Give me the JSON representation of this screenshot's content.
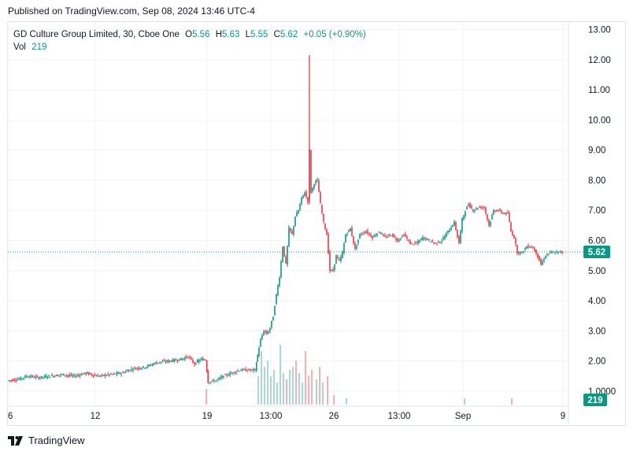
{
  "published": "Published on TradingView.com, Sep 08, 2024 13:46 UTC-4",
  "branding": {
    "logo_icon": "tradingview-logo-icon",
    "name": "TradingView"
  },
  "legend": {
    "symbol": "GD Culture Group Limited, 30, Cboe One",
    "open_label": "O",
    "open": "5.56",
    "high_label": "H",
    "high": "5.63",
    "low_label": "L",
    "low": "5.55",
    "close_label": "C",
    "close": "5.62",
    "change": "+0.05 (+0.90%)",
    "vol_label": "Vol",
    "vol": "219"
  },
  "colors": {
    "up": "#089981",
    "down": "#f23645",
    "up_volume": "#a8dad1",
    "down_volume": "#f7b1b5",
    "last_price_line": "#089981",
    "grid": "#f0f3fa"
  },
  "chart_data": {
    "type": "candlestick",
    "title": "GD Culture Group Limited, 30, Cboe One",
    "interval": "30",
    "y_axis": {
      "position": "right",
      "range": [
        0.5,
        13.25
      ],
      "ticks": [
        "1.0000",
        "2.00",
        "3.00",
        "4.00",
        "5.00",
        "6.00",
        "7.00",
        "8.00",
        "9.00",
        "10.00",
        "11.00",
        "12.00",
        "13.00"
      ]
    },
    "x_axis": {
      "range": [
        0,
        705
      ],
      "ticks": [
        {
          "label": "6",
          "x": 0
        },
        {
          "label": "12",
          "x": 111
        },
        {
          "label": "19",
          "x": 253
        },
        {
          "label": "13:00",
          "x": 334
        },
        {
          "label": "26",
          "x": 414
        },
        {
          "label": "13:00",
          "x": 497
        },
        {
          "label": "Sep",
          "x": 578
        },
        {
          "label": "9",
          "x": 705
        }
      ]
    },
    "last_price": "5.62",
    "last_volume": "219",
    "grid": true,
    "price_path": [
      [
        0,
        1.35
      ],
      [
        15,
        1.4
      ],
      [
        25,
        1.5
      ],
      [
        40,
        1.45
      ],
      [
        55,
        1.5
      ],
      [
        70,
        1.55
      ],
      [
        85,
        1.5
      ],
      [
        100,
        1.6
      ],
      [
        115,
        1.5
      ],
      [
        130,
        1.55
      ],
      [
        145,
        1.6
      ],
      [
        160,
        1.75
      ],
      [
        175,
        1.8
      ],
      [
        190,
        1.95
      ],
      [
        205,
        2.0
      ],
      [
        220,
        2.05
      ],
      [
        230,
        2.15
      ],
      [
        238,
        1.9
      ],
      [
        245,
        2.05
      ],
      [
        252,
        2.05
      ],
      [
        255,
        1.3
      ],
      [
        265,
        1.35
      ],
      [
        275,
        1.5
      ],
      [
        285,
        1.6
      ],
      [
        295,
        1.7
      ],
      [
        305,
        1.7
      ],
      [
        315,
        1.7
      ],
      [
        318,
        2.2
      ],
      [
        322,
        2.7
      ],
      [
        326,
        3.0
      ],
      [
        330,
        2.9
      ],
      [
        334,
        3.1
      ],
      [
        338,
        3.5
      ],
      [
        342,
        4.2
      ],
      [
        346,
        4.8
      ],
      [
        350,
        5.8
      ],
      [
        354,
        5.2
      ],
      [
        358,
        6.4
      ],
      [
        362,
        6.2
      ],
      [
        366,
        6.8
      ],
      [
        370,
        7.0
      ],
      [
        374,
        7.4
      ],
      [
        378,
        7.6
      ],
      [
        382,
        7.3
      ],
      [
        384,
        9.0
      ],
      [
        386,
        7.6
      ],
      [
        390,
        7.9
      ],
      [
        394,
        8.0
      ],
      [
        398,
        7.2
      ],
      [
        402,
        6.6
      ],
      [
        406,
        6.2
      ],
      [
        410,
        5.0
      ],
      [
        414,
        5.0
      ],
      [
        418,
        5.5
      ],
      [
        422,
        5.3
      ],
      [
        426,
        5.6
      ],
      [
        430,
        6.2
      ],
      [
        436,
        6.4
      ],
      [
        442,
        5.7
      ],
      [
        448,
        6.2
      ],
      [
        456,
        6.3
      ],
      [
        464,
        6.1
      ],
      [
        472,
        6.3
      ],
      [
        480,
        6.1
      ],
      [
        488,
        6.2
      ],
      [
        496,
        6.0
      ],
      [
        504,
        6.2
      ],
      [
        512,
        5.9
      ],
      [
        520,
        5.9
      ],
      [
        528,
        6.1
      ],
      [
        536,
        6.0
      ],
      [
        544,
        5.9
      ],
      [
        552,
        6.0
      ],
      [
        560,
        6.3
      ],
      [
        568,
        6.6
      ],
      [
        574,
        5.9
      ],
      [
        578,
        6.7
      ],
      [
        582,
        7.0
      ],
      [
        586,
        7.2
      ],
      [
        592,
        7.0
      ],
      [
        598,
        7.1
      ],
      [
        606,
        7.1
      ],
      [
        612,
        6.5
      ],
      [
        618,
        7.0
      ],
      [
        624,
        7.0
      ],
      [
        630,
        6.9
      ],
      [
        636,
        6.9
      ],
      [
        640,
        6.3
      ],
      [
        644,
        6.1
      ],
      [
        648,
        5.6
      ],
      [
        654,
        5.6
      ],
      [
        660,
        5.8
      ],
      [
        666,
        5.8
      ],
      [
        672,
        5.6
      ],
      [
        678,
        5.2
      ],
      [
        684,
        5.5
      ],
      [
        690,
        5.6
      ],
      [
        696,
        5.6
      ],
      [
        705,
        5.62
      ]
    ],
    "spikes": [
      {
        "x": 383,
        "high": 12.15,
        "low": 7.2
      }
    ],
    "volume_bars": [
      [
        252,
        0.25,
        "down"
      ],
      [
        318,
        0.45,
        "up"
      ],
      [
        322,
        0.85,
        "up"
      ],
      [
        326,
        0.6,
        "up"
      ],
      [
        330,
        0.7,
        "up"
      ],
      [
        334,
        0.45,
        "up"
      ],
      [
        338,
        0.55,
        "up"
      ],
      [
        342,
        0.35,
        "up"
      ],
      [
        346,
        0.95,
        "up"
      ],
      [
        350,
        0.5,
        "up"
      ],
      [
        354,
        0.4,
        "down"
      ],
      [
        358,
        0.55,
        "up"
      ],
      [
        362,
        0.6,
        "up"
      ],
      [
        366,
        0.7,
        "down"
      ],
      [
        370,
        0.5,
        "up"
      ],
      [
        374,
        0.35,
        "up"
      ],
      [
        378,
        0.85,
        "down"
      ],
      [
        382,
        0.45,
        "down"
      ],
      [
        386,
        0.55,
        "down"
      ],
      [
        392,
        0.4,
        "up"
      ],
      [
        396,
        0.6,
        "down"
      ],
      [
        400,
        0.35,
        "up"
      ],
      [
        406,
        0.45,
        "down"
      ],
      [
        414,
        0.15,
        "down"
      ],
      [
        430,
        0.1,
        "up"
      ],
      [
        580,
        0.1,
        "up"
      ],
      [
        640,
        0.1,
        "down"
      ]
    ]
  }
}
